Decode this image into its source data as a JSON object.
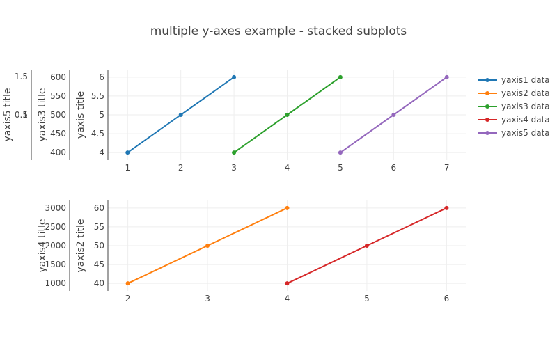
{
  "chart_data": {
    "type": "line",
    "title": "multiple y-axes example - stacked subplots",
    "legend_position": "top-right",
    "grid": true,
    "subplots": [
      {
        "xlim": [
          0.63,
          7.37
        ],
        "xticks": [
          1,
          2,
          3,
          4,
          5,
          6,
          7
        ],
        "series": [
          {
            "name": "yaxis1 data",
            "color": "#1f77b4",
            "x": [
              1,
              2,
              3
            ],
            "y": [
              4,
              5,
              6
            ],
            "yaxis": "yaxis"
          },
          {
            "name": "yaxis3 data",
            "color": "#2ca02c",
            "x": [
              3,
              4,
              5
            ],
            "y": [
              400,
              500,
              600
            ],
            "yaxis": "yaxis3"
          },
          {
            "name": "yaxis5 data",
            "color": "#9467bd",
            "x": [
              5,
              6,
              7
            ],
            "y": [
              0.4,
              0.5,
              0.6
            ],
            "yaxis": "yaxis5"
          }
        ]
      },
      {
        "xlim": [
          1.75,
          6.25
        ],
        "xticks": [
          2,
          3,
          4,
          5,
          6
        ],
        "series": [
          {
            "name": "yaxis2 data",
            "color": "#ff7f0e",
            "x": [
              2,
              3,
              4
            ],
            "y": [
              40,
              50,
              60
            ],
            "yaxis": "yaxis2"
          },
          {
            "name": "yaxis4 data",
            "color": "#d62728",
            "x": [
              4,
              5,
              6
            ],
            "y": [
              1000,
              2000,
              3000
            ],
            "yaxis": "yaxis4"
          }
        ]
      }
    ],
    "yaxes": {
      "yaxis": {
        "title": "yaxis title",
        "ylim": [
          3.8,
          6.2
        ],
        "ticks": [
          4,
          4.5,
          5,
          5.5,
          6
        ],
        "labels": [
          "4",
          "4.5",
          "5",
          "5.5",
          "6"
        ]
      },
      "yaxis3": {
        "title": "yaxis3 title",
        "ylim": [
          380,
          620
        ],
        "ticks": [
          400,
          450,
          500,
          550,
          600
        ],
        "labels": [
          "400",
          "450",
          "500",
          "550",
          "600"
        ]
      },
      "yaxis5": {
        "title": "yaxis5 title",
        "ylim": [
          0.38,
          0.62
        ],
        "ticks": [
          0.5,
          1,
          1.5
        ],
        "labels": [
          "0.5",
          "1",
          "1.5"
        ]
      },
      "yaxis2": {
        "title": "yaxis2 title",
        "ylim": [
          38,
          62
        ],
        "ticks": [
          40,
          45,
          50,
          55,
          60
        ],
        "labels": [
          "40",
          "45",
          "50",
          "55",
          "60"
        ]
      },
      "yaxis4": {
        "title": "yaxis4 title",
        "ylim": [
          800,
          3200
        ],
        "ticks": [
          1000,
          1500,
          2000,
          2500,
          3000
        ],
        "labels": [
          "1000",
          "1500",
          "2000",
          "2500",
          "3000"
        ]
      }
    },
    "legend_order": [
      "yaxis1 data",
      "yaxis2 data",
      "yaxis3 data",
      "yaxis4 data",
      "yaxis5 data"
    ]
  }
}
